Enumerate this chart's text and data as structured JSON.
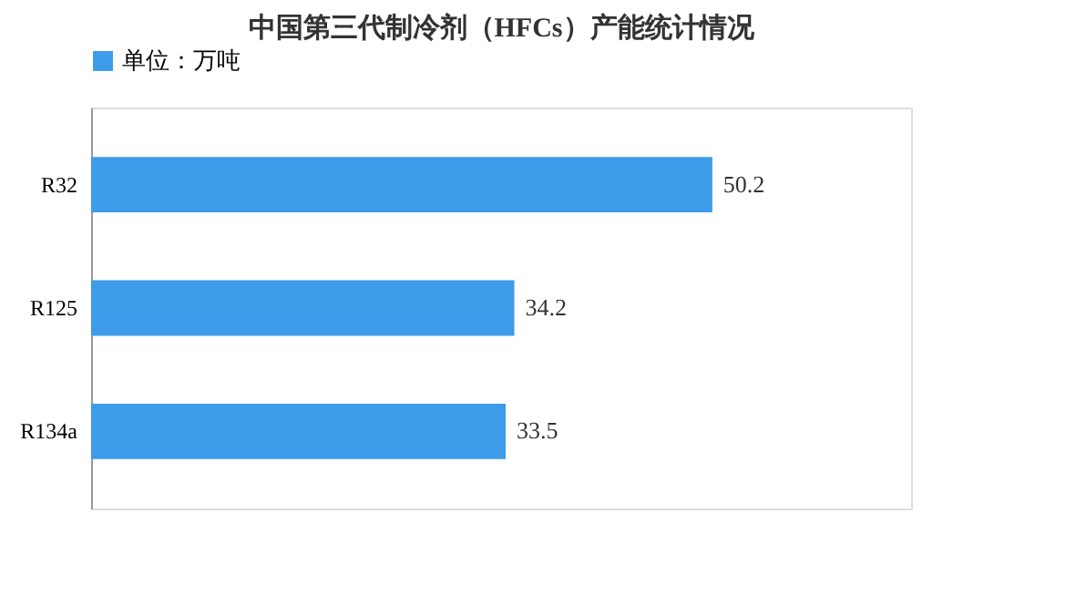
{
  "chart_data": {
    "type": "bar",
    "orientation": "horizontal",
    "title": "中国第三代制冷剂（HFCs）产能统计情况",
    "categories": [
      "R32",
      "R125",
      "R134a"
    ],
    "series": [
      {
        "name": "单位：万吨",
        "color": "#3d9be9",
        "values": [
          50.2,
          34.2,
          33.5
        ]
      }
    ],
    "data_labels": true,
    "legend": "top",
    "grid": false,
    "tick_labels": "y"
  }
}
